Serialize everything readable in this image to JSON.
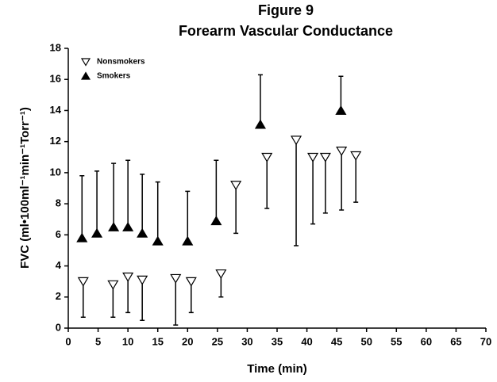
{
  "chart_data": {
    "type": "scatter",
    "title": "Figure 9",
    "subtitle": "Forearm Vascular Conductance",
    "xlabel": "Time (min)",
    "ylabel": "FVC (ml•100ml⁻¹min⁻¹Torr⁻¹)",
    "xlim": [
      0,
      70
    ],
    "xticks": [
      0,
      5,
      10,
      15,
      20,
      25,
      30,
      35,
      40,
      45,
      50,
      55,
      60,
      65,
      70
    ],
    "ylim": [
      0,
      18
    ],
    "yticks": [
      0,
      2,
      4,
      6,
      8,
      10,
      12,
      14,
      16,
      18
    ],
    "grid": false,
    "legend": "upper left",
    "series": [
      {
        "name": "Nonsmokers",
        "color": "#000000",
        "marker": "triangle-down-open",
        "error_direction": "down",
        "x": [
          2.5,
          7.5,
          10,
          12.4,
          18,
          20.6,
          25.6,
          28.1,
          33.3,
          38.2,
          41,
          43.1,
          45.8,
          48.2
        ],
        "values": [
          3.0,
          2.8,
          3.3,
          3.1,
          3.2,
          3.0,
          3.5,
          9.2,
          11.0,
          12.1,
          11.0,
          11.0,
          11.4,
          11.1
        ],
        "errors": [
          2.3,
          2.1,
          2.3,
          2.6,
          3.0,
          2.0,
          1.5,
          3.1,
          3.3,
          6.8,
          4.3,
          3.6,
          3.8,
          3.0
        ]
      },
      {
        "name": "Smokers",
        "color": "#000000",
        "marker": "triangle-up-filled",
        "error_direction": "up",
        "x": [
          2.3,
          4.8,
          7.6,
          10,
          12.4,
          15,
          20,
          24.8,
          32.2,
          45.7
        ],
        "values": [
          5.8,
          6.1,
          6.5,
          6.5,
          6.1,
          5.6,
          5.6,
          6.9,
          13.1,
          14.0
        ],
        "errors": [
          4.0,
          4.0,
          4.1,
          4.3,
          3.8,
          3.8,
          3.2,
          3.9,
          3.2,
          2.2
        ]
      }
    ]
  }
}
